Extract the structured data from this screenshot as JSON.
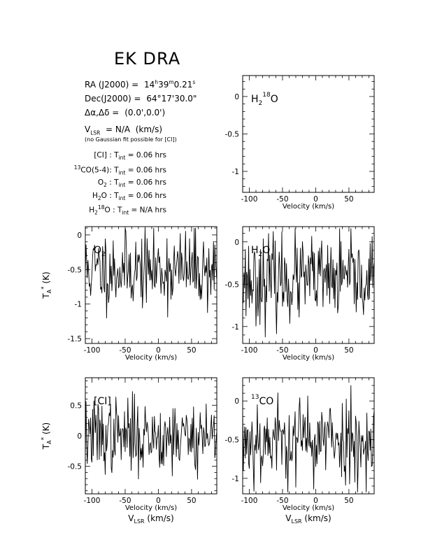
{
  "header": {
    "object_name": "EK DRA",
    "ra_label": "RA (J2000) =",
    "ra_value": "14h39m0.21s",
    "dec_label": "Dec(J2000) =",
    "dec_value": "64°17'30.0\"",
    "offset_label": "Δα,Δδ =",
    "offset_value": "(0.0',0.0')",
    "vlsr_label": "V_LSR = N/A  (km/s)",
    "vlsr_note": "(no Gaussian fit possible for [CI])"
  },
  "integration_times": [
    {
      "line": "[CI]",
      "value": "T_int = 0.06 hrs"
    },
    {
      "line": "13CO(5-4)",
      "value": "T_int = 0.06 hrs"
    },
    {
      "line": "O2",
      "value": "T_int = 0.06 hrs"
    },
    {
      "line": "H2O",
      "value": "T_int = 0.06 hrs"
    },
    {
      "line": "H2 18O",
      "value": "T_int = N/A hrs"
    }
  ],
  "axis_text": {
    "xlabel": "Velocity (km/s)",
    "ylabel": "T_A* (K)",
    "bottom_label": "V_LSR (km/s)"
  },
  "chart_data": [
    {
      "type": "line",
      "panel": "H2 18O",
      "label": "H2 18O",
      "xlim": [
        -110,
        88
      ],
      "ylim": [
        -1.28,
        0.28
      ],
      "xticks": [
        -100,
        -50,
        0,
        50
      ],
      "yticks": [
        0,
        -0.5,
        -1
      ],
      "ytick_labels": [
        "0",
        "-0.5",
        "-1"
      ],
      "ylabel": "",
      "noise": null,
      "series": []
    },
    {
      "type": "line",
      "panel": "O2",
      "label": "O2",
      "xlim": [
        -110,
        88
      ],
      "ylim": [
        -1.57,
        0.12
      ],
      "xticks": [
        -100,
        -50,
        0,
        50
      ],
      "yticks": [
        0,
        -0.5,
        -1,
        -1.5
      ],
      "ytick_labels": [
        "0",
        "-0.5",
        "-1",
        "-1.5"
      ],
      "ylabel": "T_A* (K)",
      "noise": {
        "mean": -0.5,
        "sigma": 0.28,
        "seed": 11,
        "step": 1.0
      }
    },
    {
      "type": "line",
      "panel": "H2O",
      "label": "H2O",
      "xlim": [
        -110,
        88
      ],
      "ylim": [
        -1.2,
        0.18
      ],
      "xticks": [
        -100,
        -50,
        0,
        50
      ],
      "yticks": [
        0,
        -0.5,
        -1
      ],
      "ytick_labels": [
        "0",
        "-0.5",
        "-1"
      ],
      "ylabel": "",
      "noise": {
        "mean": -0.45,
        "sigma": 0.25,
        "seed": 23,
        "step": 1.0
      }
    },
    {
      "type": "line",
      "panel": "[CI]",
      "label": "[CI]",
      "xlim": [
        -110,
        88
      ],
      "ylim": [
        -0.95,
        0.95
      ],
      "xticks": [
        -100,
        -50,
        0,
        50
      ],
      "yticks": [
        0.5,
        0,
        -0.5
      ],
      "ytick_labels": [
        "0.5",
        "0",
        "-0.5"
      ],
      "ylabel": "T_A* (K)",
      "noise": {
        "mean": 0.0,
        "sigma": 0.3,
        "seed": 37,
        "step": 1.0
      }
    },
    {
      "type": "line",
      "panel": "13CO",
      "label": "13CO",
      "xlim": [
        -110,
        88
      ],
      "ylim": [
        -1.2,
        0.3
      ],
      "xticks": [
        -100,
        -50,
        0,
        50
      ],
      "yticks": [
        0,
        -0.5,
        -1
      ],
      "ytick_labels": [
        "0",
        "-0.5",
        "-1"
      ],
      "ylabel": "",
      "noise": {
        "mean": -0.5,
        "sigma": 0.28,
        "seed": 53,
        "step": 1.0
      }
    }
  ]
}
